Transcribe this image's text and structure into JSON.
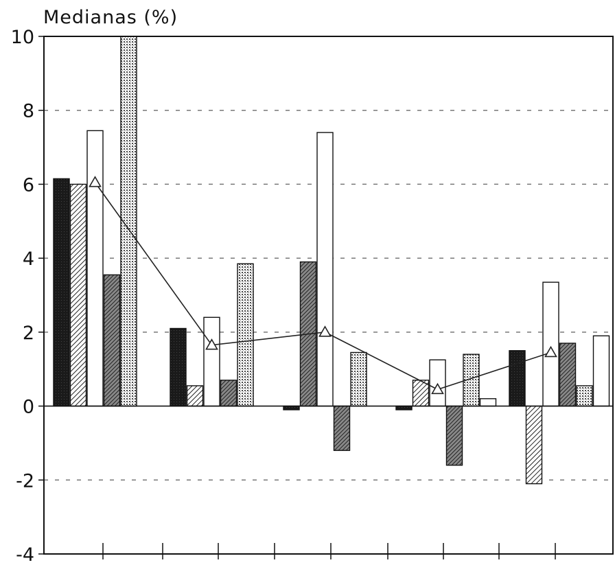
{
  "chart_data": {
    "type": "bar",
    "title": "",
    "ylabel": "Medianas (%)",
    "xlabel": "",
    "ylim": [
      -4,
      10
    ],
    "yticks": [
      -4,
      -2,
      0,
      2,
      4,
      6,
      8,
      10
    ],
    "grid": true,
    "legend": "none",
    "groups": [
      {
        "bars": [
          {
            "value": 6.15,
            "pattern": "dark"
          },
          {
            "value": 6.0,
            "pattern": "diag-light"
          },
          {
            "value": 7.45,
            "pattern": "white"
          },
          {
            "value": 3.55,
            "pattern": "diag-dark"
          },
          {
            "value": 10.0,
            "pattern": "dots"
          }
        ],
        "line_value": 6.05
      },
      {
        "bars": [
          {
            "value": 2.1,
            "pattern": "dark"
          },
          {
            "value": 0.55,
            "pattern": "diag-light"
          },
          {
            "value": 2.4,
            "pattern": "white"
          },
          {
            "value": 0.7,
            "pattern": "diag-dark"
          },
          {
            "value": 3.85,
            "pattern": "dots"
          }
        ],
        "line_value": 1.65
      },
      {
        "bars": [
          {
            "value": -0.1,
            "pattern": "dark"
          },
          {
            "value": 3.9,
            "pattern": "diag-dark"
          },
          {
            "value": 7.4,
            "pattern": "white"
          },
          {
            "value": -1.2,
            "pattern": "diag-dark"
          },
          {
            "value": 1.45,
            "pattern": "dots"
          }
        ],
        "line_value": 2.0
      },
      {
        "bars": [
          {
            "value": -0.1,
            "pattern": "dark"
          },
          {
            "value": 0.7,
            "pattern": "diag-light"
          },
          {
            "value": 1.25,
            "pattern": "white"
          },
          {
            "value": -1.6,
            "pattern": "diag-dark"
          },
          {
            "value": 1.4,
            "pattern": "dots"
          },
          {
            "value": 0.2,
            "pattern": "white"
          }
        ],
        "line_value": 0.45
      },
      {
        "bars": [
          {
            "value": 1.5,
            "pattern": "dark"
          },
          {
            "value": -2.1,
            "pattern": "diag-light"
          },
          {
            "value": 3.35,
            "pattern": "white"
          },
          {
            "value": 1.7,
            "pattern": "diag-dark"
          },
          {
            "value": 0.55,
            "pattern": "dots"
          },
          {
            "value": 1.9,
            "pattern": "white"
          }
        ],
        "line_value": 1.45
      }
    ]
  }
}
